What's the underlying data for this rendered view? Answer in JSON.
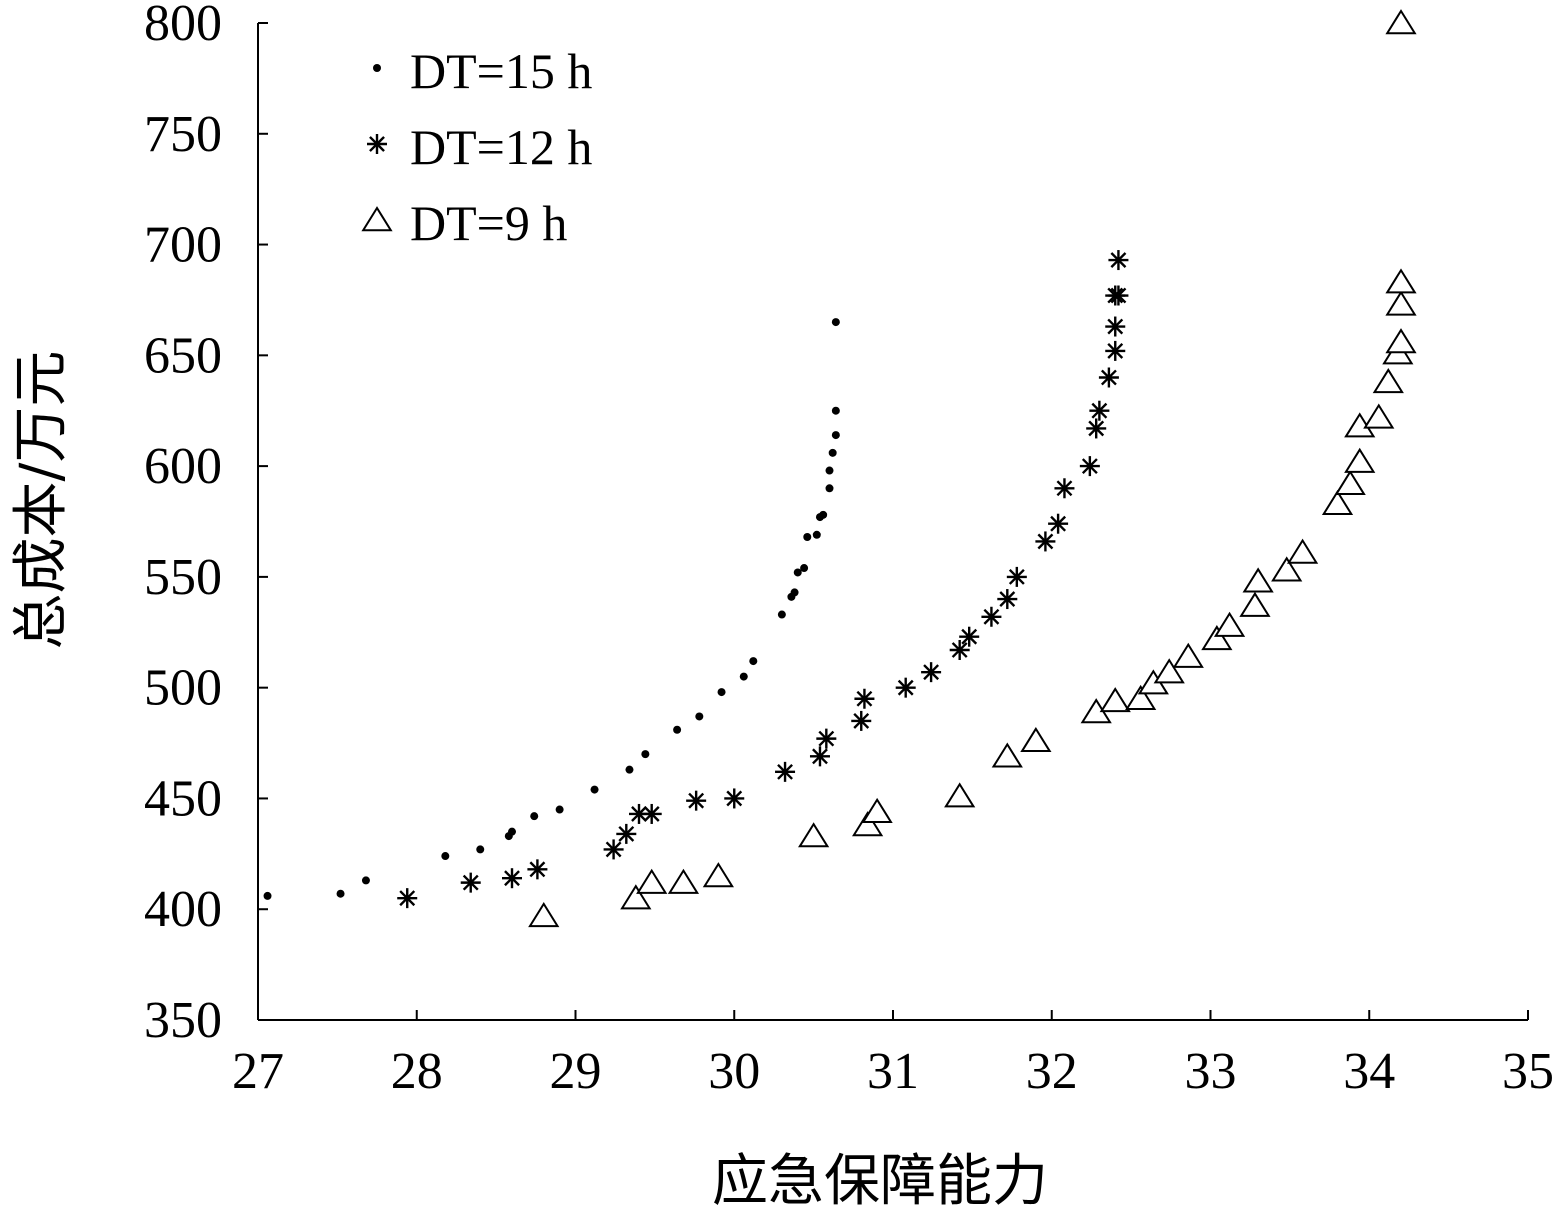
{
  "chart_data": {
    "type": "scatter",
    "xlabel": "应急保障能力",
    "ylabel": "总成本/万元",
    "xlim": [
      27,
      35
    ],
    "ylim": [
      350,
      800
    ],
    "xticks": [
      "27",
      "28",
      "29",
      "30",
      "31",
      "32",
      "33",
      "34",
      "35"
    ],
    "yticks": [
      "350",
      "400",
      "450",
      "500",
      "550",
      "600",
      "650",
      "700",
      "750",
      "800"
    ],
    "grid": false,
    "legend_position": "top-left",
    "series": [
      {
        "name": "DT=15 h",
        "marker": "dot",
        "points": [
          [
            27.06,
            406
          ],
          [
            27.52,
            407
          ],
          [
            27.68,
            413
          ],
          [
            28.18,
            424
          ],
          [
            28.4,
            427
          ],
          [
            28.58,
            433
          ],
          [
            28.6,
            435
          ],
          [
            28.74,
            442
          ],
          [
            28.9,
            445
          ],
          [
            29.12,
            454
          ],
          [
            29.34,
            463
          ],
          [
            29.44,
            470
          ],
          [
            29.64,
            481
          ],
          [
            29.78,
            487
          ],
          [
            29.92,
            498
          ],
          [
            30.06,
            505
          ],
          [
            30.12,
            512
          ],
          [
            30.3,
            533
          ],
          [
            30.36,
            541
          ],
          [
            30.38,
            543
          ],
          [
            30.4,
            552
          ],
          [
            30.44,
            554
          ],
          [
            30.46,
            568
          ],
          [
            30.52,
            569
          ],
          [
            30.54,
            577
          ],
          [
            30.56,
            578
          ],
          [
            30.6,
            590
          ],
          [
            30.6,
            598
          ],
          [
            30.62,
            606
          ],
          [
            30.64,
            614
          ],
          [
            30.64,
            625
          ],
          [
            30.64,
            665
          ]
        ]
      },
      {
        "name": "DT=12 h",
        "marker": "asterisk",
        "points": [
          [
            27.94,
            405
          ],
          [
            28.34,
            412
          ],
          [
            28.6,
            414
          ],
          [
            28.76,
            418
          ],
          [
            29.24,
            427
          ],
          [
            29.32,
            434
          ],
          [
            29.4,
            443
          ],
          [
            29.48,
            443
          ],
          [
            29.76,
            449
          ],
          [
            30.0,
            450
          ],
          [
            30.32,
            462
          ],
          [
            30.54,
            469
          ],
          [
            30.58,
            477
          ],
          [
            30.8,
            485
          ],
          [
            30.82,
            495
          ],
          [
            31.08,
            500
          ],
          [
            31.24,
            507
          ],
          [
            31.42,
            517
          ],
          [
            31.48,
            523
          ],
          [
            31.62,
            532
          ],
          [
            31.72,
            540
          ],
          [
            31.78,
            550
          ],
          [
            31.96,
            566
          ],
          [
            32.04,
            574
          ],
          [
            32.08,
            590
          ],
          [
            32.24,
            600
          ],
          [
            32.28,
            617
          ],
          [
            32.3,
            625
          ],
          [
            32.36,
            640
          ],
          [
            32.4,
            652
          ],
          [
            32.4,
            663
          ],
          [
            32.4,
            677
          ],
          [
            32.42,
            677
          ],
          [
            32.42,
            693
          ]
        ]
      },
      {
        "name": "DT=9 h",
        "marker": "triangle",
        "points": [
          [
            28.8,
            397
          ],
          [
            29.38,
            405
          ],
          [
            29.48,
            412
          ],
          [
            29.68,
            412
          ],
          [
            29.9,
            415
          ],
          [
            30.5,
            433
          ],
          [
            30.84,
            438
          ],
          [
            30.9,
            444
          ],
          [
            31.42,
            451
          ],
          [
            31.72,
            469
          ],
          [
            31.9,
            476
          ],
          [
            32.28,
            489
          ],
          [
            32.4,
            494
          ],
          [
            32.56,
            495
          ],
          [
            32.64,
            502
          ],
          [
            32.74,
            507
          ],
          [
            32.86,
            514
          ],
          [
            33.04,
            522
          ],
          [
            33.12,
            528
          ],
          [
            33.28,
            537
          ],
          [
            33.3,
            548
          ],
          [
            33.48,
            553
          ],
          [
            33.58,
            561
          ],
          [
            33.8,
            583
          ],
          [
            33.88,
            592
          ],
          [
            33.94,
            602
          ],
          [
            33.94,
            618
          ],
          [
            34.06,
            622
          ],
          [
            34.12,
            638
          ],
          [
            34.18,
            651
          ],
          [
            34.2,
            656
          ],
          [
            34.2,
            673
          ],
          [
            34.2,
            683
          ],
          [
            34.2,
            800
          ]
        ]
      }
    ]
  }
}
